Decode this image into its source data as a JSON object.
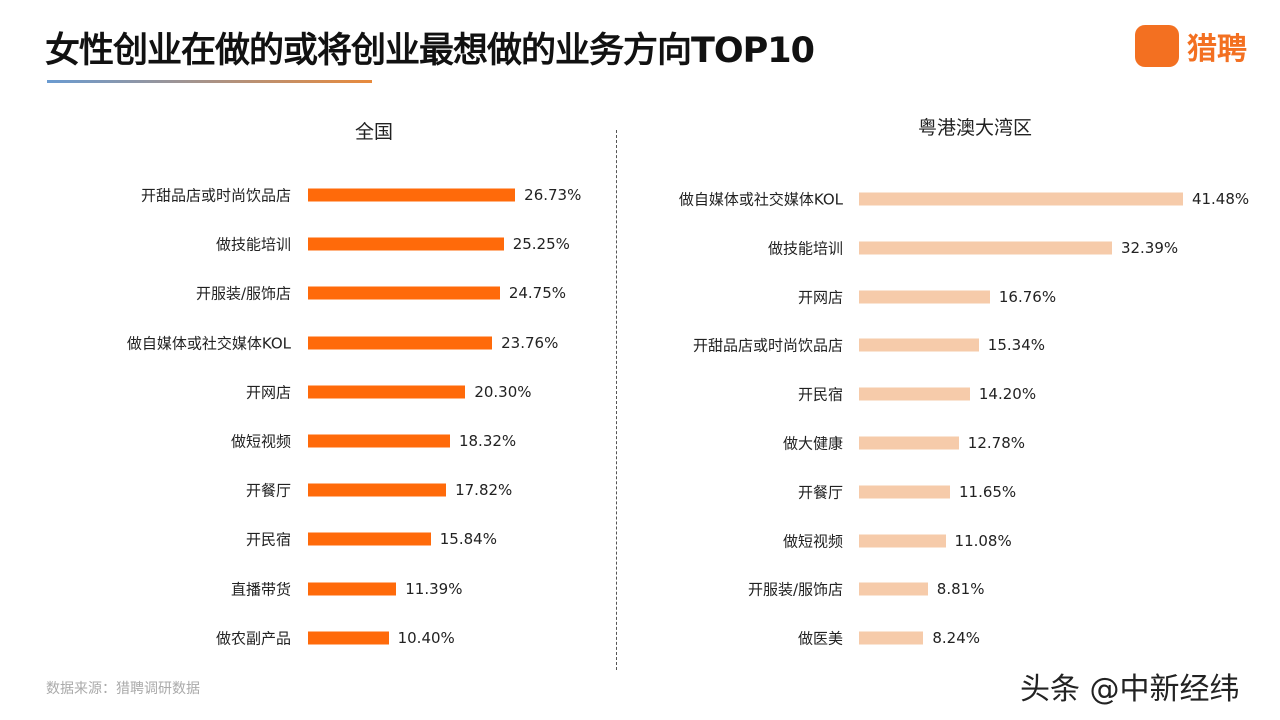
{
  "header": {
    "title": "女性创业在做的或将创业最想做的业务方向TOP10",
    "logo_text": "猎聘",
    "logo_badge": "猎聘"
  },
  "footer": {
    "source": "数据来源：猎聘调研数据",
    "watermark": "头条 @中新经纬"
  },
  "chart_data": [
    {
      "type": "bar",
      "orientation": "horizontal",
      "title": "全国",
      "color": "#FF6A0A",
      "categories": [
        "开甜品店或时尚饮品店",
        "做技能培训",
        "开服装/服饰店",
        "做自媒体或社交媒体KOL",
        "开网店",
        "做短视频",
        "开餐厅",
        "开民宿",
        "直播带货",
        "做农副产品"
      ],
      "values": [
        26.73,
        25.25,
        24.75,
        23.76,
        20.3,
        18.32,
        17.82,
        15.84,
        11.39,
        10.4
      ],
      "labels": [
        "26.73%",
        "25.25%",
        "24.75%",
        "23.76%",
        "20.30%",
        "18.32%",
        "17.82%",
        "15.84%",
        "11.39%",
        "10.40%"
      ],
      "unit": "%"
    },
    {
      "type": "bar",
      "orientation": "horizontal",
      "title": "粤港澳大湾区",
      "color": "#F6CBAA",
      "categories": [
        "做自媒体或社交媒体KOL",
        "做技能培训",
        "开网店",
        "开甜品店或时尚饮品店",
        "开民宿",
        "做大健康",
        "开餐厅",
        "做短视频",
        "开服装/服饰店",
        "做医美"
      ],
      "values": [
        41.48,
        32.39,
        16.76,
        15.34,
        14.2,
        12.78,
        11.65,
        11.08,
        8.81,
        8.24
      ],
      "labels": [
        "41.48%",
        "32.39%",
        "16.76%",
        "15.34%",
        "14.20%",
        "12.78%",
        "11.65%",
        "11.08%",
        "8.81%",
        "8.24%"
      ],
      "unit": "%"
    }
  ]
}
